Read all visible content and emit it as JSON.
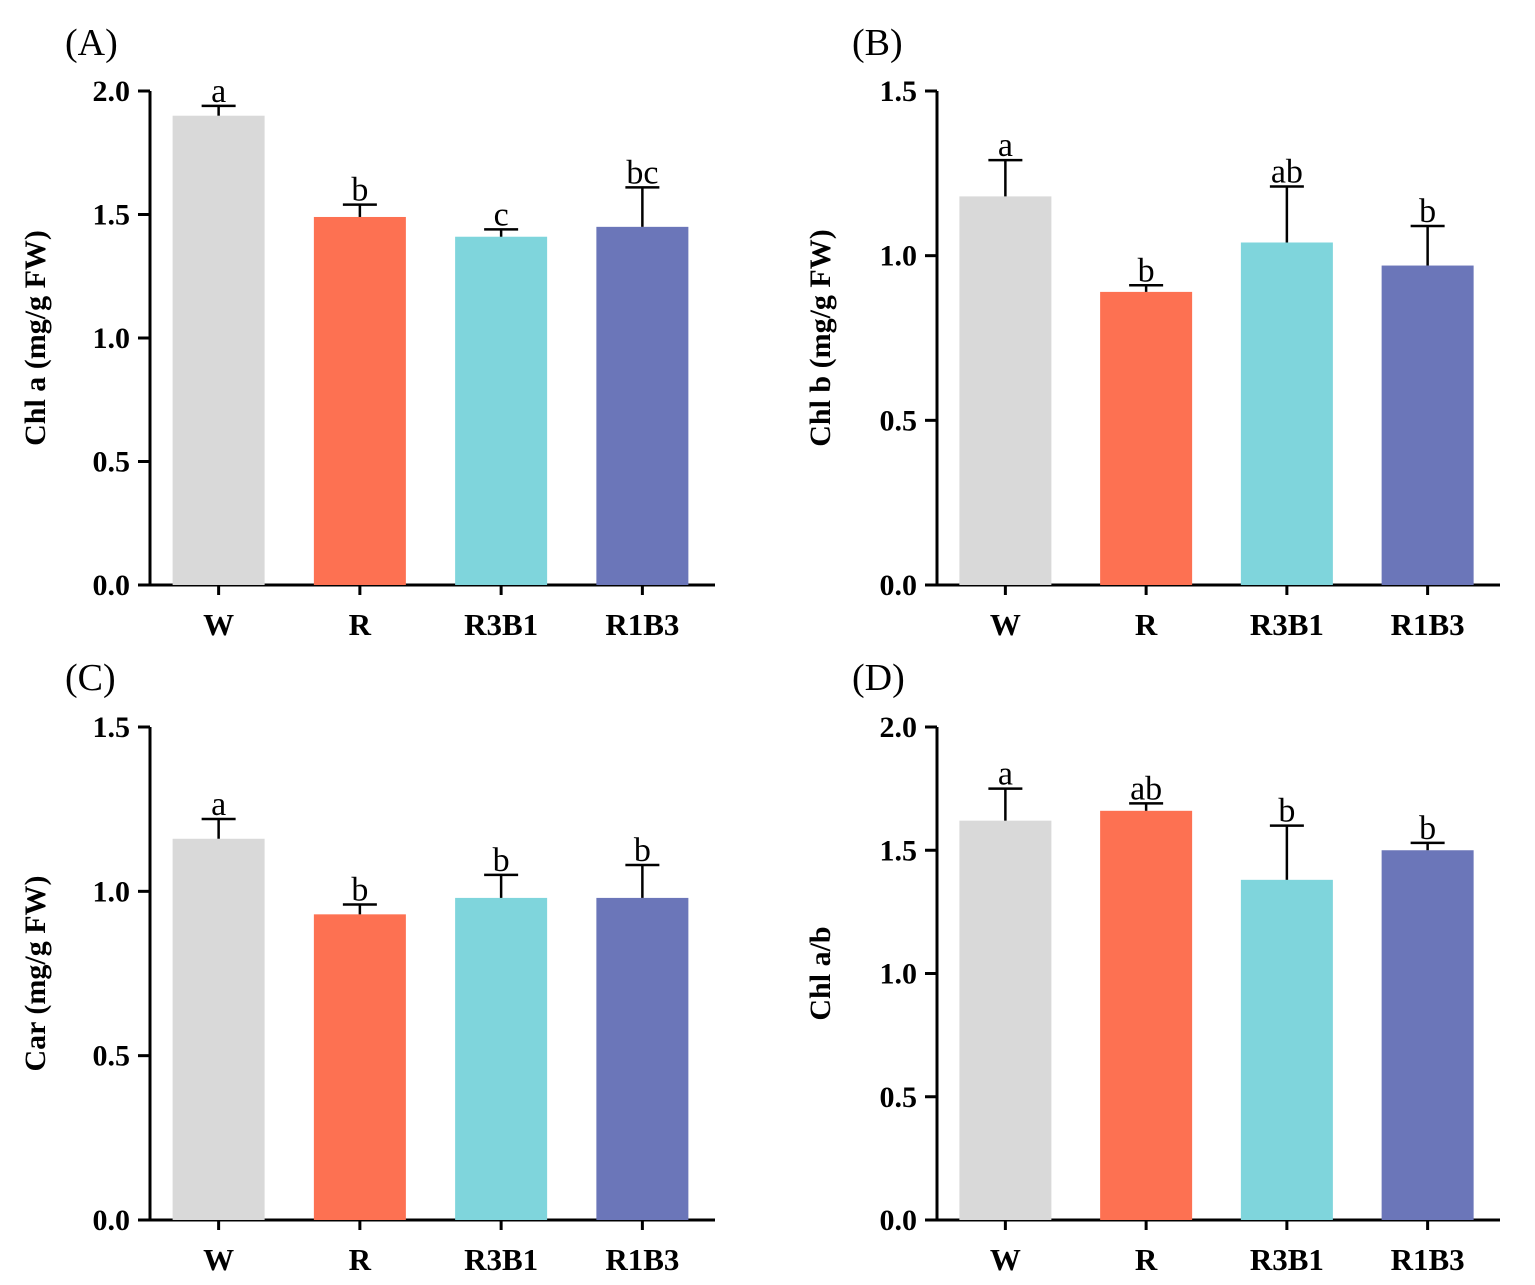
{
  "chart_data": [
    {
      "type": "bar",
      "panel": "(A)",
      "categories": [
        "W",
        "R",
        "R3B1",
        "R1B3"
      ],
      "values": [
        1.9,
        1.49,
        1.41,
        1.45
      ],
      "errors": [
        0.04,
        0.05,
        0.03,
        0.16
      ],
      "significance": [
        "a",
        "b",
        "c",
        "bc"
      ],
      "ylabel": "Chl a (mg/g FW)",
      "ylim": [
        0,
        2.0
      ],
      "yticks": [
        "0.0",
        "0.5",
        "1.0",
        "1.5",
        "2.0"
      ]
    },
    {
      "type": "bar",
      "panel": "(B)",
      "categories": [
        "W",
        "R",
        "R3B1",
        "R1B3"
      ],
      "values": [
        1.18,
        0.89,
        1.04,
        0.97
      ],
      "errors": [
        0.11,
        0.02,
        0.17,
        0.12
      ],
      "significance": [
        "a",
        "b",
        "ab",
        "b"
      ],
      "ylabel": "Chl b (mg/g FW)",
      "ylim": [
        0,
        1.5
      ],
      "yticks": [
        "0.0",
        "0.5",
        "1.0",
        "1.5"
      ]
    },
    {
      "type": "bar",
      "panel": "(C)",
      "categories": [
        "W",
        "R",
        "R3B1",
        "R1B3"
      ],
      "values": [
        1.16,
        0.93,
        0.98,
        0.98
      ],
      "errors": [
        0.06,
        0.03,
        0.07,
        0.1
      ],
      "significance": [
        "a",
        "b",
        "b",
        "b"
      ],
      "ylabel": "Car (mg/g FW)",
      "ylim": [
        0,
        1.5
      ],
      "yticks": [
        "0.0",
        "0.5",
        "1.0",
        "1.5"
      ]
    },
    {
      "type": "bar",
      "panel": "(D)",
      "categories": [
        "W",
        "R",
        "R3B1",
        "R1B3"
      ],
      "values": [
        1.62,
        1.66,
        1.38,
        1.5
      ],
      "errors": [
        0.13,
        0.03,
        0.22,
        0.03
      ],
      "significance": [
        "a",
        "ab",
        "b",
        "b"
      ],
      "ylabel": "Chl a/b",
      "ylim": [
        0,
        2.0
      ],
      "yticks": [
        "0.0",
        "0.5",
        "1.0",
        "1.5",
        "2.0"
      ]
    }
  ],
  "colors": {
    "W": "#d9d9d9",
    "R": "#fd7152",
    "R3B1": "#7fd5dc",
    "R1B3": "#6b76b9"
  }
}
